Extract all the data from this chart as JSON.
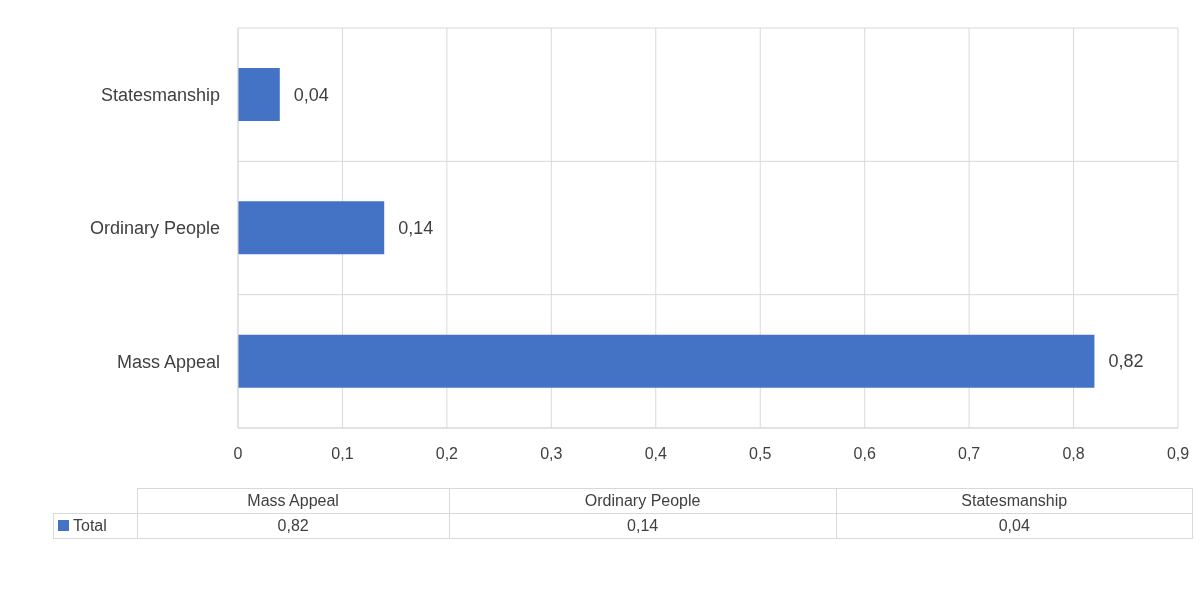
{
  "chart_data": {
    "type": "bar",
    "orientation": "horizontal",
    "categories": [
      "Statesmanship",
      "Ordinary People",
      "Mass Appeal"
    ],
    "series": [
      {
        "name": "Total",
        "color": "#4472c4",
        "values": [
          0.04,
          0.14,
          0.82
        ],
        "value_labels": [
          "0,04",
          "0,14",
          "0,82"
        ]
      }
    ],
    "xlim": [
      0,
      0.9
    ],
    "xticks": [
      0,
      {
        "value": 0.1,
        "label": "0,1"
      },
      {
        "value": 0.2,
        "label": "0,2"
      },
      {
        "value": 0.3,
        "label": "0,3"
      },
      {
        "value": 0.4,
        "label": "0,4"
      },
      {
        "value": 0.5,
        "label": "0,5"
      },
      {
        "value": 0.6,
        "label": "0,6"
      },
      {
        "value": 0.7,
        "label": "0,7"
      },
      {
        "value": 0.8,
        "label": "0,8"
      },
      {
        "value": 0.9,
        "label": "0,9"
      }
    ],
    "grid": true,
    "legend": "bottom"
  }
}
